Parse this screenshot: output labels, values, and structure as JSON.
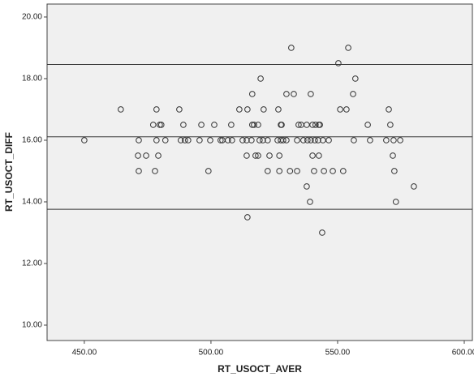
{
  "chart_data": {
    "type": "scatter",
    "xlabel": "RT_USOCT_AVER",
    "ylabel": "RT_USOCT_DIFF",
    "x": [
      531.7,
      554.2,
      550.3,
      519.6,
      557,
      516.3,
      529.8,
      532.7,
      539.4,
      556.1,
      464.4,
      478.5,
      487.5,
      511.2,
      514.4,
      520.8,
      526.6,
      551,
      553.5,
      570.2,
      477.2,
      479.8,
      480.4,
      489.1,
      496.2,
      501.3,
      508,
      516.3,
      517,
      518.6,
      527.6,
      527.9,
      534.6,
      535.6,
      537.8,
      540.1,
      543,
      541.3,
      542.6,
      570.8,
      561.9,
      450,
      471.5,
      478.5,
      482,
      488.1,
      489.7,
      491,
      495.5,
      499.7,
      503.8,
      504.5,
      506.7,
      508.3,
      512.5,
      514.1,
      516,
      519.2,
      520.5,
      522.4,
      526.3,
      527.6,
      528.5,
      529.8,
      534,
      536.5,
      538.1,
      539.4,
      541,
      542.3,
      544.2,
      546.5,
      556.4,
      562.8,
      569.2,
      572.1,
      574.7,
      471.2,
      474.4,
      479.2,
      514.1,
      517.6,
      518.6,
      523.1,
      527,
      540.1,
      542.6,
      571.8,
      471.5,
      477.9,
      499,
      522.4,
      527,
      531.2,
      534,
      540.7,
      544.6,
      548.1,
      552.2,
      572.4,
      537.8,
      580.1,
      539.1,
      573,
      514.4,
      543.9
    ],
    "values": [
      19,
      19,
      18.5,
      18,
      18,
      17.5,
      17.5,
      17.5,
      17.5,
      17.5,
      17,
      17,
      17,
      17,
      17,
      17,
      17,
      17,
      17,
      17,
      16.5,
      16.5,
      16.5,
      16.5,
      16.5,
      16.5,
      16.5,
      16.5,
      16.5,
      16.5,
      16.5,
      16.5,
      16.5,
      16.5,
      16.5,
      16.5,
      16.5,
      16.5,
      16.5,
      16.5,
      16.5,
      16,
      16,
      16,
      16,
      16,
      16,
      16,
      16,
      16,
      16,
      16,
      16,
      16,
      16,
      16,
      16,
      16,
      16,
      16,
      16,
      16,
      16,
      16,
      16,
      16,
      16,
      16,
      16,
      16,
      16,
      16,
      16,
      16,
      16,
      16,
      16,
      15.5,
      15.5,
      15.5,
      15.5,
      15.5,
      15.5,
      15.5,
      15.5,
      15.5,
      15.5,
      15.5,
      15,
      15,
      15,
      15,
      15,
      15,
      15,
      15,
      15,
      15,
      15,
      15,
      14.5,
      14.5,
      14,
      14,
      13.5,
      13
    ],
    "color": "#333333",
    "reference_lines": [
      18.46,
      16.11,
      13.76
    ],
    "xlim": [
      435.3,
      603.2
    ],
    "xticks": [
      {
        "value": 450,
        "label": "450.00"
      },
      {
        "value": 500,
        "label": "500.00"
      },
      {
        "value": 550,
        "label": "550.00"
      },
      {
        "value": 600,
        "label": "600.00"
      }
    ],
    "ylim": [
      9.5,
      20.42
    ],
    "yticks": [
      {
        "value": 10,
        "label": "10.00"
      },
      {
        "value": 12,
        "label": "12.00"
      },
      {
        "value": 14,
        "label": "14.00"
      },
      {
        "value": 16,
        "label": "16.00"
      },
      {
        "value": 18,
        "label": "18.00"
      },
      {
        "value": 20,
        "label": "20.00"
      }
    ],
    "grid": false
  }
}
